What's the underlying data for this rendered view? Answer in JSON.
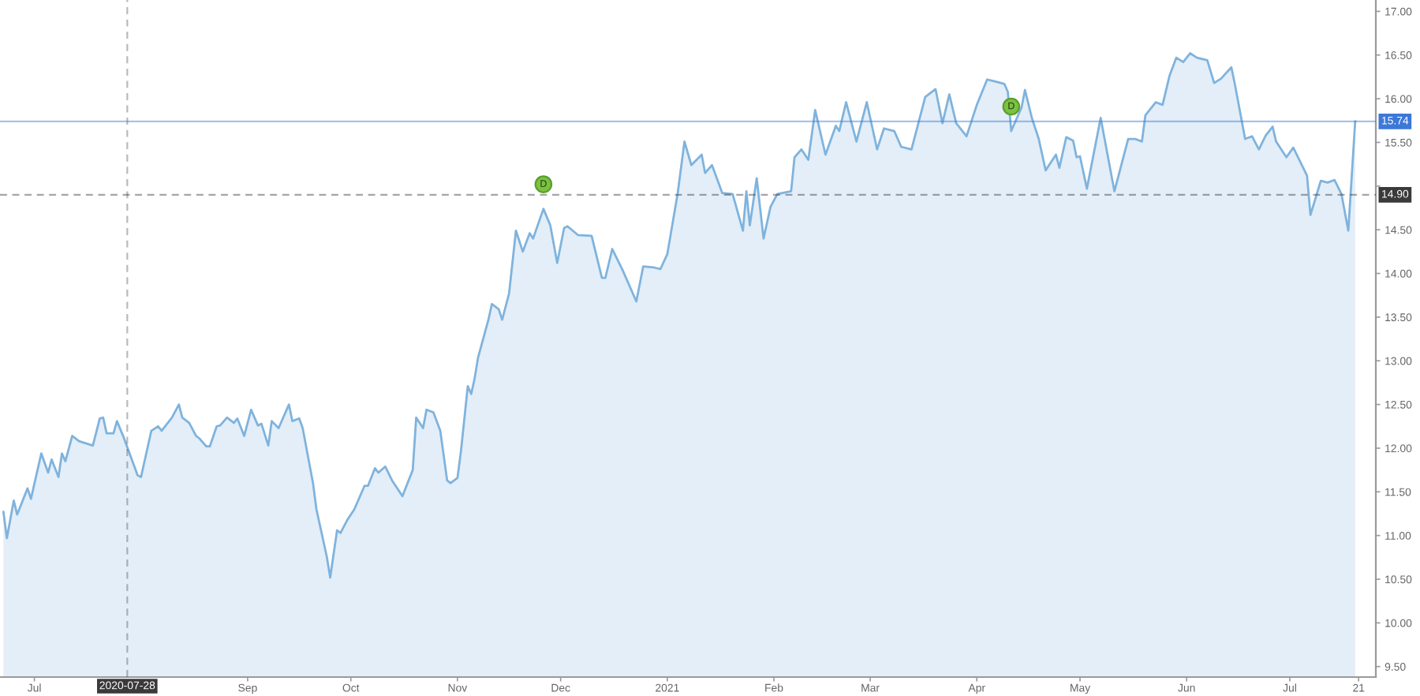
{
  "chart_data": {
    "type": "area",
    "color": "#7fb3dd",
    "x": [
      "2020-06-22",
      "2020-06-23",
      "2020-06-25",
      "2020-06-26",
      "2020-06-29",
      "2020-06-30",
      "2020-07-03",
      "2020-07-05",
      "2020-07-06",
      "2020-07-08",
      "2020-07-09",
      "2020-07-10",
      "2020-07-12",
      "2020-07-14",
      "2020-07-18",
      "2020-07-20",
      "2020-07-21",
      "2020-07-22",
      "2020-07-24",
      "2020-07-25",
      "2020-07-27",
      "2020-07-31",
      "2020-08-01",
      "2020-08-04",
      "2020-08-06",
      "2020-08-07",
      "2020-08-10",
      "2020-08-12",
      "2020-08-13",
      "2020-08-15",
      "2020-08-17",
      "2020-08-18",
      "2020-08-20",
      "2020-08-21",
      "2020-08-23",
      "2020-08-24",
      "2020-08-26",
      "2020-08-28",
      "2020-08-29",
      "2020-08-31",
      "2020-09-02",
      "2020-09-04",
      "2020-09-05",
      "2020-09-07",
      "2020-09-08",
      "2020-09-10",
      "2020-09-13",
      "2020-09-14",
      "2020-09-16",
      "2020-09-17",
      "2020-09-20",
      "2020-09-21",
      "2020-09-23",
      "2020-09-24",
      "2020-09-25",
      "2020-09-27",
      "2020-09-28",
      "2020-09-30",
      "2020-10-02",
      "2020-10-05",
      "2020-10-06",
      "2020-10-08",
      "2020-10-09",
      "2020-10-11",
      "2020-10-13",
      "2020-10-16",
      "2020-10-19",
      "2020-10-20",
      "2020-10-22",
      "2020-10-23",
      "2020-10-25",
      "2020-10-27",
      "2020-10-29",
      "2020-10-30",
      "2020-11-01",
      "2020-11-02",
      "2020-11-04",
      "2020-11-05",
      "2020-11-06",
      "2020-11-07",
      "2020-11-10",
      "2020-11-11",
      "2020-11-13",
      "2020-11-14",
      "2020-11-16",
      "2020-11-18",
      "2020-11-20",
      "2020-11-22",
      "2020-11-23",
      "2020-11-26",
      "2020-11-28",
      "2020-11-30",
      "2020-12-02",
      "2020-12-03",
      "2020-12-06",
      "2020-12-10",
      "2020-12-13",
      "2020-12-14",
      "2020-12-16",
      "2020-12-19",
      "2020-12-23",
      "2020-12-25",
      "2020-12-28",
      "2020-12-30",
      "2021-01-01",
      "2021-01-04",
      "2021-01-06",
      "2021-01-08",
      "2021-01-11",
      "2021-01-12",
      "2021-01-14",
      "2021-01-17",
      "2021-01-20",
      "2021-01-23",
      "2021-01-24",
      "2021-01-25",
      "2021-01-27",
      "2021-01-29",
      "2021-01-31",
      "2021-02-02",
      "2021-02-06",
      "2021-02-07",
      "2021-02-09",
      "2021-02-11",
      "2021-02-13",
      "2021-02-16",
      "2021-02-19",
      "2021-02-20",
      "2021-02-22",
      "2021-02-25",
      "2021-02-28",
      "2021-03-03",
      "2021-03-05",
      "2021-03-08",
      "2021-03-10",
      "2021-03-13",
      "2021-03-17",
      "2021-03-20",
      "2021-03-22",
      "2021-03-24",
      "2021-03-26",
      "2021-03-29",
      "2021-04-01",
      "2021-04-04",
      "2021-04-06",
      "2021-04-09",
      "2021-04-10",
      "2021-04-11",
      "2021-04-14",
      "2021-04-15",
      "2021-04-17",
      "2021-04-19",
      "2021-04-21",
      "2021-04-24",
      "2021-04-25",
      "2021-04-27",
      "2021-04-29",
      "2021-04-30",
      "2021-05-01",
      "2021-05-03",
      "2021-05-07",
      "2021-05-11",
      "2021-05-15",
      "2021-05-17",
      "2021-05-19",
      "2021-05-20",
      "2021-05-23",
      "2021-05-25",
      "2021-05-27",
      "2021-05-29",
      "2021-05-31",
      "2021-06-02",
      "2021-06-04",
      "2021-06-07",
      "2021-06-09",
      "2021-06-11",
      "2021-06-14",
      "2021-06-15",
      "2021-06-18",
      "2021-06-20",
      "2021-06-22",
      "2021-06-24",
      "2021-06-26",
      "2021-06-27",
      "2021-06-30",
      "2021-07-02",
      "2021-07-03",
      "2021-07-06",
      "2021-07-07",
      "2021-07-10",
      "2021-07-12",
      "2021-07-14",
      "2021-07-16",
      "2021-07-18",
      "2021-07-20"
    ],
    "values": [
      11.27,
      10.97,
      11.4,
      11.24,
      11.54,
      11.42,
      11.94,
      11.72,
      11.87,
      11.67,
      11.94,
      11.85,
      12.14,
      12.08,
      12.03,
      12.34,
      12.35,
      12.17,
      12.17,
      12.31,
      12.12,
      11.69,
      11.67,
      12.2,
      12.25,
      12.2,
      12.35,
      12.5,
      12.35,
      12.29,
      12.14,
      12.11,
      12.02,
      12.02,
      12.25,
      12.26,
      12.35,
      12.29,
      12.34,
      12.14,
      12.44,
      12.26,
      12.28,
      12.03,
      12.31,
      12.23,
      12.5,
      12.31,
      12.34,
      12.23,
      11.6,
      11.3,
      10.94,
      10.76,
      10.52,
      11.06,
      11.03,
      11.18,
      11.3,
      11.57,
      11.57,
      11.77,
      11.72,
      11.79,
      11.63,
      11.45,
      11.75,
      12.35,
      12.23,
      12.44,
      12.41,
      12.2,
      11.63,
      11.6,
      11.66,
      11.96,
      12.71,
      12.62,
      12.8,
      13.04,
      13.47,
      13.65,
      13.59,
      13.47,
      13.77,
      14.49,
      14.25,
      14.46,
      14.4,
      14.74,
      14.55,
      14.12,
      14.52,
      14.54,
      14.44,
      14.43,
      13.95,
      13.95,
      14.28,
      14.04,
      13.68,
      14.08,
      14.07,
      14.05,
      14.22,
      14.91,
      15.51,
      15.24,
      15.36,
      15.15,
      15.24,
      14.92,
      14.91,
      14.49,
      14.94,
      14.55,
      15.09,
      14.4,
      14.76,
      14.91,
      14.94,
      15.33,
      15.42,
      15.3,
      15.87,
      15.36,
      15.69,
      15.63,
      15.96,
      15.51,
      15.96,
      15.42,
      15.66,
      15.63,
      15.45,
      15.42,
      16.02,
      16.11,
      15.72,
      16.05,
      15.72,
      15.57,
      15.93,
      16.22,
      16.2,
      16.17,
      16.08,
      15.63,
      15.9,
      16.1,
      15.78,
      15.54,
      15.18,
      15.36,
      15.21,
      15.56,
      15.52,
      15.33,
      15.34,
      14.97,
      15.78,
      14.94,
      15.54,
      15.54,
      15.51,
      15.81,
      15.96,
      15.93,
      16.26,
      16.47,
      16.42,
      16.52,
      16.47,
      16.44,
      16.18,
      16.23,
      16.36,
      16.17,
      15.54,
      15.57,
      15.42,
      15.58,
      15.68,
      15.51,
      15.33,
      15.44,
      15.36,
      15.12,
      14.67,
      15.06,
      15.04,
      15.07,
      14.91,
      14.49,
      15.74
    ],
    "xlim": [
      "2020-06-21",
      "2021-07-26"
    ],
    "xticks": [
      {
        "value": "2020-07-01",
        "label": "Jul"
      },
      {
        "value": "2020-09-01",
        "label": "Sep"
      },
      {
        "value": "2020-10-01",
        "label": "Oct"
      },
      {
        "value": "2020-11-01",
        "label": "Nov"
      },
      {
        "value": "2020-12-01",
        "label": "Dec"
      },
      {
        "value": "2021-01-01",
        "label": "2021"
      },
      {
        "value": "2021-02-01",
        "label": "Feb"
      },
      {
        "value": "2021-03-01",
        "label": "Mar"
      },
      {
        "value": "2021-04-01",
        "label": "Apr"
      },
      {
        "value": "2021-05-01",
        "label": "May"
      },
      {
        "value": "2021-06-01",
        "label": "Jun"
      },
      {
        "value": "2021-07-01",
        "label": "Jul"
      },
      {
        "value": "2021-07-21",
        "label": "21"
      }
    ],
    "ylim": [
      9.38,
      17.13
    ],
    "yticks": [
      {
        "value": 9.5,
        "label": "9.50"
      },
      {
        "value": 10,
        "label": "10.00"
      },
      {
        "value": 10.5,
        "label": "10.50"
      },
      {
        "value": 11,
        "label": "11.00"
      },
      {
        "value": 11.5,
        "label": "11.50"
      },
      {
        "value": 12,
        "label": "12.00"
      },
      {
        "value": 12.5,
        "label": "12.50"
      },
      {
        "value": 13,
        "label": "13.00"
      },
      {
        "value": 13.5,
        "label": "13.50"
      },
      {
        "value": 14,
        "label": "14.00"
      },
      {
        "value": 14.5,
        "label": "14.50"
      },
      {
        "value": 15,
        "label": null
      },
      {
        "value": 15.5,
        "label": "15.50"
      },
      {
        "value": 16,
        "label": "16.00"
      },
      {
        "value": 16.5,
        "label": "16.50"
      },
      {
        "value": 17,
        "label": "17.00"
      }
    ],
    "ref_lines": [
      {
        "axis": "x",
        "value": "2020-07-28",
        "label": "2020-07-28",
        "color": "#3a3a3a",
        "line_style": "dashed"
      },
      {
        "axis": "y",
        "value": 15.74,
        "label": "15.74",
        "color": "#3c78d8"
      },
      {
        "axis": "y",
        "value": 14.9,
        "label": "14.90",
        "color": "#3a3a3a",
        "line_style": "dashed"
      }
    ],
    "annotations": [
      {
        "text": "D",
        "x": "2020-11-26",
        "y": 15.02
      },
      {
        "text": "D",
        "x": "2021-04-11",
        "y": 15.91
      }
    ]
  }
}
